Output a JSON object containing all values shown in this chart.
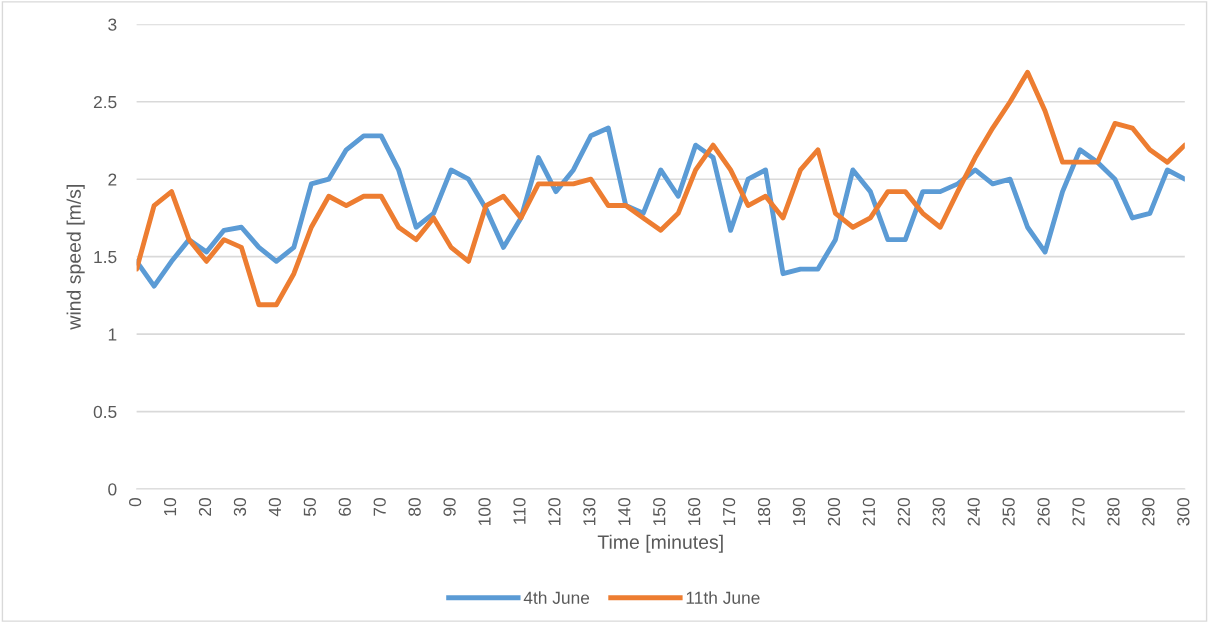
{
  "chart_data": {
    "type": "line",
    "xlabel": "Time [minutes]",
    "ylabel": "wind speed [m/s]",
    "x": [
      0,
      5,
      10,
      15,
      20,
      25,
      30,
      35,
      40,
      45,
      50,
      55,
      60,
      65,
      70,
      75,
      80,
      85,
      90,
      95,
      100,
      105,
      110,
      115,
      120,
      125,
      130,
      135,
      140,
      145,
      150,
      155,
      160,
      165,
      170,
      175,
      180,
      185,
      190,
      195,
      200,
      205,
      210,
      215,
      220,
      225,
      230,
      235,
      240,
      245,
      250,
      255,
      260,
      265,
      270,
      275,
      280,
      285,
      290,
      295,
      300
    ],
    "series": [
      {
        "name": "4th June",
        "color": "#5b9bd5",
        "values": [
          1.47,
          1.31,
          1.47,
          1.61,
          1.53,
          1.67,
          1.69,
          1.56,
          1.47,
          1.56,
          1.97,
          2.0,
          2.19,
          2.28,
          2.28,
          2.06,
          1.69,
          1.78,
          2.06,
          2.0,
          1.81,
          1.56,
          1.75,
          2.14,
          1.92,
          2.06,
          2.28,
          2.33,
          1.83,
          1.78,
          2.06,
          1.89,
          2.22,
          2.14,
          1.67,
          2.0,
          2.06,
          1.39,
          1.42,
          1.42,
          1.61,
          2.06,
          1.92,
          1.61,
          1.61,
          1.92,
          1.92,
          1.97,
          2.06,
          1.97,
          2.0,
          1.69,
          1.53,
          1.92,
          2.19,
          2.11,
          2.0,
          1.75,
          1.78,
          2.06,
          2.0
        ]
      },
      {
        "name": "11th June",
        "color": "#ed7d31",
        "values": [
          1.42,
          1.83,
          1.92,
          1.61,
          1.47,
          1.61,
          1.56,
          1.19,
          1.19,
          1.39,
          1.69,
          1.89,
          1.83,
          1.89,
          1.89,
          1.69,
          1.61,
          1.75,
          1.56,
          1.47,
          1.83,
          1.89,
          1.75,
          1.97,
          1.97,
          1.97,
          2.0,
          1.83,
          1.83,
          1.75,
          1.67,
          1.78,
          2.06,
          2.22,
          2.06,
          1.83,
          1.89,
          1.75,
          2.06,
          2.19,
          1.78,
          1.69,
          1.75,
          1.92,
          1.92,
          1.78,
          1.69,
          1.92,
          2.14,
          2.33,
          2.5,
          2.69,
          2.44,
          2.11,
          2.11,
          2.11,
          2.36,
          2.33,
          2.19,
          2.11,
          2.22
        ]
      }
    ],
    "xlim": [
      0,
      300
    ],
    "xticks": [
      0,
      10,
      20,
      30,
      40,
      50,
      60,
      70,
      80,
      90,
      100,
      110,
      120,
      130,
      140,
      150,
      160,
      170,
      180,
      190,
      200,
      210,
      220,
      230,
      240,
      250,
      260,
      270,
      280,
      290,
      300
    ],
    "ylim": [
      0,
      3
    ],
    "yticks": [
      0,
      0.5,
      1,
      1.5,
      2,
      2.5,
      3
    ],
    "grid": "y",
    "legend": "bottom",
    "marker": "none",
    "line_style": "solid"
  }
}
